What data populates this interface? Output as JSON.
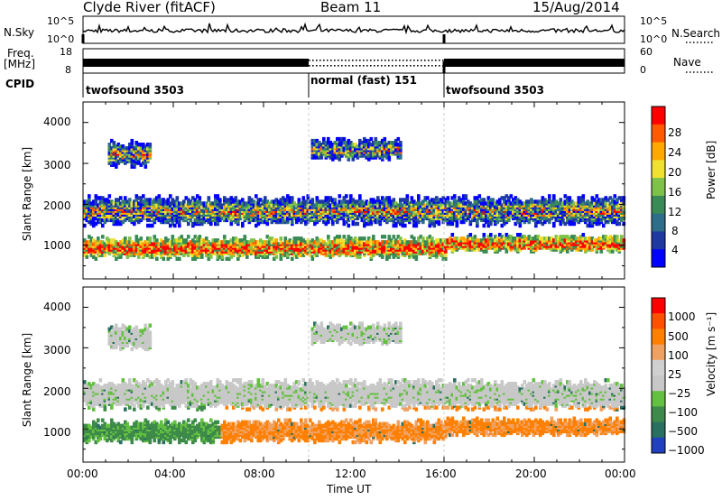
{
  "header": {
    "station": "Clyde River (fitACF)",
    "beam": "Beam 11",
    "date": "15/Aug/2014"
  },
  "side_labels": {
    "nsky": "N.Sky",
    "freq_line1": "Freq.",
    "freq_line2": "[MHz]",
    "cpid": "CPID",
    "nsearch": "N.Search",
    "nave": "Nave"
  },
  "noise_panel": {
    "left_ticks": [
      "10^5",
      "10^0"
    ],
    "right_ticks": [
      "10^5",
      "10^0"
    ]
  },
  "freq_panel": {
    "left_ticks": [
      "18",
      "8"
    ],
    "right_ticks": [
      "60",
      "0"
    ]
  },
  "cpid_panel": {
    "segments": [
      {
        "start": 0,
        "end": 10,
        "label": "twofsound 3503"
      },
      {
        "start": 10,
        "end": 16,
        "label": "normal (fast) 151"
      },
      {
        "start": 16,
        "end": 24,
        "label": "twofsound 3503"
      }
    ]
  },
  "power_panel": {
    "colorbar_title": "Power [dB]",
    "colorbar_ticks": [
      "28",
      "24",
      "20",
      "16",
      "12",
      "8",
      "4"
    ],
    "colors": [
      "#0000ff",
      "#1e3aa0",
      "#2e6e8a",
      "#3a8a55",
      "#7ec24a",
      "#f0e030",
      "#ffa800",
      "#ff5a00",
      "#ff0000"
    ]
  },
  "velocity_panel": {
    "colorbar_title": "Velocity [m s⁻¹]",
    "colorbar_ticks": [
      "1000",
      "500",
      "100",
      "25",
      "−25",
      "−100",
      "−500",
      "−1000"
    ],
    "colors": [
      "#2040c0",
      "#2a7060",
      "#3d8a4a",
      "#64c040",
      "#c8c8c8",
      "#d0d0d0",
      "#f0a060",
      "#ff8000",
      "#ff5000",
      "#ff0000"
    ]
  },
  "chart_data": {
    "type": "heatmap",
    "title": "Clyde River (fitACF)",
    "subtitle": "Beam 11",
    "xlabel": "Time UT",
    "ylabel": "Slant Range [km]",
    "x_ticks": [
      "00:00",
      "04:00",
      "08:00",
      "12:00",
      "16:00",
      "20:00",
      "00:00"
    ],
    "xlim_hours": [
      0,
      24
    ],
    "y_ticks": [
      "1000",
      "2000",
      "3000",
      "4000"
    ],
    "ylim_km": [
      180,
      4500
    ],
    "echo_bands": [
      {
        "start": 0,
        "end": 24,
        "center_km": 1800,
        "width_km": 350
      },
      {
        "start": 0,
        "end": 16,
        "center_km": 900,
        "width_km": 250
      },
      {
        "start": 16,
        "end": 24,
        "center_km": 1000,
        "width_km": 200
      },
      {
        "start": 1,
        "end": 3,
        "center_km": 3200,
        "width_km": 300
      },
      {
        "start": 10,
        "end": 14,
        "center_km": 3300,
        "width_km": 250
      }
    ],
    "mode_change_hours": [
      10,
      16
    ]
  }
}
